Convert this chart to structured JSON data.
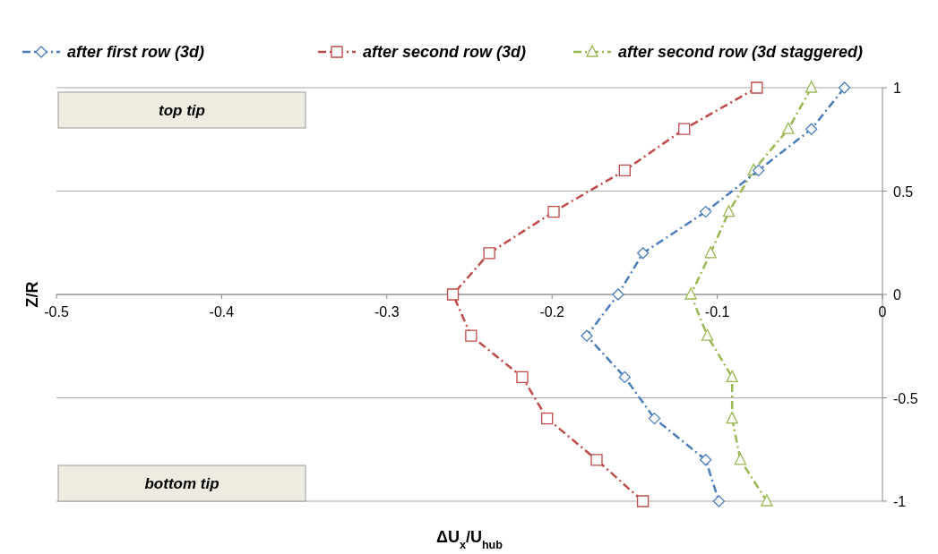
{
  "chart_data": {
    "type": "line",
    "xlabel": "ΔU$_{x}$/U$_{hub}$",
    "ylabel": "Z/R",
    "xlim": [
      -0.5,
      0
    ],
    "xticks": [
      -0.5,
      -0.4,
      -0.3,
      -0.2,
      -0.1,
      0
    ],
    "ylim": [
      -1,
      1
    ],
    "yticks": [
      -1,
      -0.5,
      0,
      0.5,
      1
    ],
    "grid": "y",
    "legend": "top",
    "line_style": "dashed",
    "annotations": [
      "top tip",
      "bottom tip"
    ],
    "series": [
      {
        "name": "after first row (3d)",
        "color": "#4a7ebb",
        "marker": "diamond",
        "x": [
          -0.023,
          -0.043,
          -0.075,
          -0.107,
          -0.145,
          -0.16,
          -0.179,
          -0.156,
          -0.138,
          -0.107,
          -0.099
        ],
        "values": [
          1,
          0.8,
          0.6,
          0.4,
          0.2,
          0,
          -0.2,
          -0.4,
          -0.6,
          -0.8,
          -1
        ]
      },
      {
        "name": "after second row (3d)",
        "color": "#be4b48",
        "marker": "square",
        "x": [
          -0.076,
          -0.12,
          -0.156,
          -0.199,
          -0.238,
          -0.26,
          -0.249,
          -0.218,
          -0.203,
          -0.173,
          -0.145
        ],
        "values": [
          1,
          0.8,
          0.6,
          0.4,
          0.2,
          0,
          -0.2,
          -0.4,
          -0.6,
          -0.8,
          -1
        ]
      },
      {
        "name": "after second row (3d staggered)",
        "color": "#98b954",
        "marker": "triangle",
        "x": [
          -0.043,
          -0.057,
          -0.078,
          -0.093,
          -0.104,
          -0.116,
          -0.106,
          -0.091,
          -0.091,
          -0.086,
          -0.07
        ],
        "values": [
          1,
          0.8,
          0.6,
          0.4,
          0.2,
          0,
          -0.2,
          -0.4,
          -0.6,
          -0.8,
          -1
        ]
      }
    ]
  }
}
